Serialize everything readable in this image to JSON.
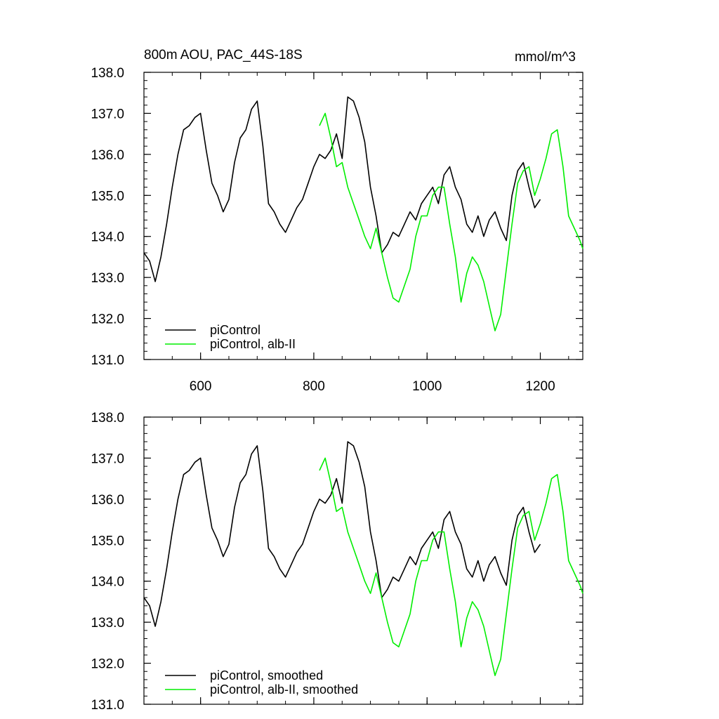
{
  "figure": {
    "title_left": "800m AOU, PAC_44S-18S",
    "title_right": "mmol/m^3"
  },
  "colors": {
    "piControl": "#000000",
    "albII": "#00ee00"
  },
  "chart_data": [
    {
      "type": "line",
      "panel": "top",
      "xlim": [
        500,
        1275
      ],
      "ylim": [
        131,
        138
      ],
      "x_ticks": [
        600,
        800,
        1000,
        1200
      ],
      "x_tick_labels": [
        "600",
        "800",
        "1000",
        "1200"
      ],
      "y_ticks": [
        131,
        132,
        133,
        134,
        135,
        136,
        137,
        138
      ],
      "y_tick_labels": [
        "131.0",
        "132.0",
        "133.0",
        "134.0",
        "135.0",
        "136.0",
        "137.0",
        "138.0"
      ],
      "legend_position": "bottom-left",
      "series": [
        {
          "name": "piControl",
          "color": "#000000",
          "x": [
            500,
            510,
            520,
            530,
            540,
            550,
            560,
            570,
            580,
            590,
            600,
            610,
            620,
            630,
            640,
            650,
            660,
            670,
            680,
            690,
            700,
            710,
            720,
            730,
            740,
            750,
            760,
            770,
            780,
            790,
            800,
            810,
            820,
            830,
            840,
            850,
            860,
            870,
            880,
            890,
            900,
            910,
            920,
            930,
            940,
            950,
            960,
            970,
            980,
            990,
            1000,
            1010,
            1020,
            1030,
            1040,
            1050,
            1060,
            1070,
            1080,
            1090,
            1100,
            1110,
            1120,
            1130,
            1140,
            1150,
            1160,
            1170,
            1180,
            1190,
            1200
          ],
          "y": [
            133.6,
            133.4,
            132.9,
            133.5,
            134.3,
            135.2,
            136.0,
            136.6,
            136.7,
            136.9,
            137.0,
            136.1,
            135.3,
            135.0,
            134.6,
            134.9,
            135.8,
            136.4,
            136.6,
            137.1,
            137.3,
            136.2,
            134.8,
            134.6,
            134.3,
            134.1,
            134.4,
            134.7,
            134.9,
            135.3,
            135.7,
            136.0,
            135.9,
            136.1,
            136.5,
            135.9,
            137.4,
            137.3,
            136.9,
            136.3,
            135.2,
            134.5,
            133.6,
            133.8,
            134.1,
            134.0,
            134.3,
            134.6,
            134.4,
            134.8,
            135.0,
            135.2,
            134.8,
            135.5,
            135.7,
            135.2,
            134.9,
            134.3,
            134.1,
            134.5,
            134.0,
            134.4,
            134.6,
            134.2,
            133.9,
            135.0,
            135.6,
            135.8,
            135.2,
            134.7,
            134.9
          ]
        },
        {
          "name": "piControl, alb-II",
          "color": "#00ee00",
          "x": [
            810,
            820,
            830,
            840,
            850,
            860,
            870,
            880,
            890,
            900,
            910,
            920,
            930,
            940,
            950,
            960,
            970,
            980,
            990,
            1000,
            1010,
            1020,
            1030,
            1040,
            1050,
            1060,
            1070,
            1080,
            1090,
            1100,
            1110,
            1120,
            1130,
            1140,
            1150,
            1160,
            1170,
            1180,
            1190,
            1200,
            1210,
            1220,
            1230,
            1240,
            1250,
            1260,
            1270,
            1275
          ],
          "y": [
            136.7,
            137.0,
            136.4,
            135.7,
            135.8,
            135.2,
            134.8,
            134.4,
            134.0,
            133.7,
            134.2,
            133.6,
            133.0,
            132.5,
            132.4,
            132.8,
            133.2,
            134.0,
            134.5,
            134.5,
            135.0,
            135.2,
            135.2,
            134.3,
            133.5,
            132.4,
            133.1,
            133.5,
            133.3,
            132.9,
            132.3,
            131.7,
            132.1,
            133.2,
            134.3,
            135.3,
            135.6,
            135.7,
            135.0,
            135.4,
            135.9,
            136.5,
            136.6,
            135.7,
            134.5,
            134.2,
            133.9,
            133.7
          ]
        }
      ]
    },
    {
      "type": "line",
      "panel": "bottom",
      "xlim": [
        500,
        1275
      ],
      "ylim": [
        131,
        138
      ],
      "x_ticks": [
        600,
        800,
        1000,
        1200
      ],
      "y_ticks": [
        131,
        132,
        133,
        134,
        135,
        136,
        137,
        138
      ],
      "y_tick_labels": [
        "131.0",
        "132.0",
        "133.0",
        "134.0",
        "135.0",
        "136.0",
        "137.0",
        "138.0"
      ],
      "legend_position": "bottom-left",
      "series": [
        {
          "name": "piControl, smoothed",
          "color": "#000000",
          "x": [
            500,
            510,
            520,
            530,
            540,
            550,
            560,
            570,
            580,
            590,
            600,
            610,
            620,
            630,
            640,
            650,
            660,
            670,
            680,
            690,
            700,
            710,
            720,
            730,
            740,
            750,
            760,
            770,
            780,
            790,
            800,
            810,
            820,
            830,
            840,
            850,
            860,
            870,
            880,
            890,
            900,
            910,
            920,
            930,
            940,
            950,
            960,
            970,
            980,
            990,
            1000,
            1010,
            1020,
            1030,
            1040,
            1050,
            1060,
            1070,
            1080,
            1090,
            1100,
            1110,
            1120,
            1130,
            1140,
            1150,
            1160,
            1170,
            1180,
            1190,
            1200
          ],
          "y": [
            133.6,
            133.4,
            132.9,
            133.5,
            134.3,
            135.2,
            136.0,
            136.6,
            136.7,
            136.9,
            137.0,
            136.1,
            135.3,
            135.0,
            134.6,
            134.9,
            135.8,
            136.4,
            136.6,
            137.1,
            137.3,
            136.2,
            134.8,
            134.6,
            134.3,
            134.1,
            134.4,
            134.7,
            134.9,
            135.3,
            135.7,
            136.0,
            135.9,
            136.1,
            136.5,
            135.9,
            137.4,
            137.3,
            136.9,
            136.3,
            135.2,
            134.5,
            133.6,
            133.8,
            134.1,
            134.0,
            134.3,
            134.6,
            134.4,
            134.8,
            135.0,
            135.2,
            134.8,
            135.5,
            135.7,
            135.2,
            134.9,
            134.3,
            134.1,
            134.5,
            134.0,
            134.4,
            134.6,
            134.2,
            133.9,
            135.0,
            135.6,
            135.8,
            135.2,
            134.7,
            134.9
          ]
        },
        {
          "name": "piControl, alb-II, smoothed",
          "color": "#00ee00",
          "x": [
            810,
            820,
            830,
            840,
            850,
            860,
            870,
            880,
            890,
            900,
            910,
            920,
            930,
            940,
            950,
            960,
            970,
            980,
            990,
            1000,
            1010,
            1020,
            1030,
            1040,
            1050,
            1060,
            1070,
            1080,
            1090,
            1100,
            1110,
            1120,
            1130,
            1140,
            1150,
            1160,
            1170,
            1180,
            1190,
            1200,
            1210,
            1220,
            1230,
            1240,
            1250,
            1260,
            1270,
            1275
          ],
          "y": [
            136.7,
            137.0,
            136.4,
            135.7,
            135.8,
            135.2,
            134.8,
            134.4,
            134.0,
            133.7,
            134.2,
            133.6,
            133.0,
            132.5,
            132.4,
            132.8,
            133.2,
            134.0,
            134.5,
            134.5,
            135.0,
            135.2,
            135.2,
            134.3,
            133.5,
            132.4,
            133.1,
            133.5,
            133.3,
            132.9,
            132.3,
            131.7,
            132.1,
            133.2,
            134.3,
            135.3,
            135.6,
            135.7,
            135.0,
            135.4,
            135.9,
            136.5,
            136.6,
            135.7,
            134.5,
            134.2,
            133.9,
            133.7
          ]
        }
      ]
    }
  ]
}
